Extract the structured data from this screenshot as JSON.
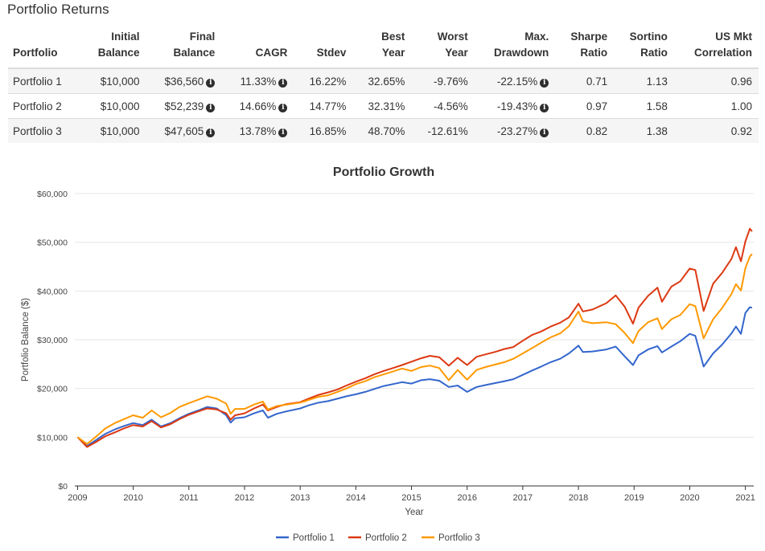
{
  "section_title": "Portfolio Returns",
  "table": {
    "headers": [
      [
        "",
        "Portfolio"
      ],
      [
        "Initial",
        "Balance"
      ],
      [
        "Final",
        "Balance"
      ],
      [
        "",
        "CAGR"
      ],
      [
        "",
        "Stdev"
      ],
      [
        "Best",
        "Year"
      ],
      [
        "Worst",
        "Year"
      ],
      [
        "Max.",
        "Drawdown"
      ],
      [
        "Sharpe",
        "Ratio"
      ],
      [
        "Sortino",
        "Ratio"
      ],
      [
        "US Mkt",
        "Correlation"
      ]
    ],
    "rows": [
      [
        "Portfolio 1",
        "$10,000",
        "$36,560",
        "11.33%",
        "16.22%",
        "32.65%",
        "-9.76%",
        "-22.15%",
        "0.71",
        "1.13",
        "0.96"
      ],
      [
        "Portfolio 2",
        "$10,000",
        "$52,239",
        "14.66%",
        "14.77%",
        "32.31%",
        "-4.56%",
        "-19.43%",
        "0.97",
        "1.58",
        "1.00"
      ],
      [
        "Portfolio 3",
        "$10,000",
        "$47,605",
        "13.78%",
        "16.85%",
        "48.70%",
        "-12.61%",
        "-23.27%",
        "0.82",
        "1.38",
        "0.92"
      ]
    ],
    "info_icon_columns": [
      2,
      3,
      7
    ],
    "info_icon_glyph": "i"
  },
  "chart_data": {
    "type": "line",
    "title": "Portfolio Growth",
    "xlabel": "Year",
    "ylabel": "Portfolio Balance ($)",
    "xlim": [
      2008.95,
      2021.15
    ],
    "ylim": [
      0,
      60000
    ],
    "y_ticks": [
      0,
      10000,
      20000,
      30000,
      40000,
      50000,
      60000
    ],
    "y_tick_labels": [
      "$0",
      "$10,000",
      "$20,000",
      "$30,000",
      "$40,000",
      "$50,000",
      "$60,000"
    ],
    "x_ticks": [
      2009,
      2010,
      2011,
      2012,
      2013,
      2014,
      2015,
      2016,
      2017,
      2018,
      2019,
      2020,
      2021
    ],
    "x_tick_labels": [
      "2009",
      "2010",
      "2011",
      "2012",
      "2013",
      "2014",
      "2015",
      "2016",
      "2017",
      "2018",
      "2019",
      "2020",
      "2021"
    ],
    "grid": true,
    "legend_position": "bottom-center",
    "series": [
      {
        "name": "Portfolio 1",
        "color": "#3366cc",
        "points": [
          [
            2009.0,
            10000
          ],
          [
            2009.17,
            8200
          ],
          [
            2009.33,
            9400
          ],
          [
            2009.5,
            10700
          ],
          [
            2009.67,
            11600
          ],
          [
            2009.83,
            12300
          ],
          [
            2010.0,
            12900
          ],
          [
            2010.17,
            12500
          ],
          [
            2010.33,
            13600
          ],
          [
            2010.5,
            12200
          ],
          [
            2010.67,
            12900
          ],
          [
            2010.83,
            13900
          ],
          [
            2011.0,
            14800
          ],
          [
            2011.17,
            15500
          ],
          [
            2011.33,
            16200
          ],
          [
            2011.5,
            15900
          ],
          [
            2011.67,
            14500
          ],
          [
            2011.75,
            13000
          ],
          [
            2011.83,
            13900
          ],
          [
            2012.0,
            14100
          ],
          [
            2012.17,
            14900
          ],
          [
            2012.33,
            15500
          ],
          [
            2012.42,
            14000
          ],
          [
            2012.58,
            14800
          ],
          [
            2012.75,
            15300
          ],
          [
            2013.0,
            15900
          ],
          [
            2013.17,
            16600
          ],
          [
            2013.33,
            17100
          ],
          [
            2013.5,
            17400
          ],
          [
            2013.67,
            17900
          ],
          [
            2013.83,
            18400
          ],
          [
            2014.0,
            18800
          ],
          [
            2014.17,
            19300
          ],
          [
            2014.33,
            19900
          ],
          [
            2014.5,
            20500
          ],
          [
            2014.67,
            20900
          ],
          [
            2014.83,
            21300
          ],
          [
            2015.0,
            21000
          ],
          [
            2015.17,
            21700
          ],
          [
            2015.33,
            21900
          ],
          [
            2015.5,
            21600
          ],
          [
            2015.67,
            20300
          ],
          [
            2015.83,
            20600
          ],
          [
            2016.0,
            19300
          ],
          [
            2016.17,
            20300
          ],
          [
            2016.33,
            20700
          ],
          [
            2016.5,
            21100
          ],
          [
            2016.67,
            21500
          ],
          [
            2016.83,
            21900
          ],
          [
            2017.0,
            22800
          ],
          [
            2017.17,
            23700
          ],
          [
            2017.33,
            24500
          ],
          [
            2017.5,
            25400
          ],
          [
            2017.67,
            26100
          ],
          [
            2017.83,
            27200
          ],
          [
            2018.0,
            28800
          ],
          [
            2018.08,
            27500
          ],
          [
            2018.25,
            27600
          ],
          [
            2018.5,
            28000
          ],
          [
            2018.67,
            28600
          ],
          [
            2018.83,
            26600
          ],
          [
            2018.98,
            24800
          ],
          [
            2019.08,
            26800
          ],
          [
            2019.25,
            28000
          ],
          [
            2019.42,
            28700
          ],
          [
            2019.5,
            27400
          ],
          [
            2019.67,
            28600
          ],
          [
            2019.83,
            29700
          ],
          [
            2020.0,
            31200
          ],
          [
            2020.1,
            30800
          ],
          [
            2020.25,
            24500
          ],
          [
            2020.42,
            27200
          ],
          [
            2020.58,
            29000
          ],
          [
            2020.75,
            31300
          ],
          [
            2020.83,
            32700
          ],
          [
            2020.92,
            31200
          ],
          [
            2021.0,
            35500
          ],
          [
            2021.08,
            36700
          ],
          [
            2021.12,
            36560
          ]
        ]
      },
      {
        "name": "Portfolio 2",
        "color": "#dc3912",
        "points": [
          [
            2009.0,
            10000
          ],
          [
            2009.17,
            8000
          ],
          [
            2009.33,
            9000
          ],
          [
            2009.5,
            10200
          ],
          [
            2009.67,
            11000
          ],
          [
            2009.83,
            11800
          ],
          [
            2010.0,
            12500
          ],
          [
            2010.17,
            12200
          ],
          [
            2010.33,
            13300
          ],
          [
            2010.5,
            12000
          ],
          [
            2010.67,
            12700
          ],
          [
            2010.83,
            13700
          ],
          [
            2011.0,
            14600
          ],
          [
            2011.17,
            15300
          ],
          [
            2011.33,
            15900
          ],
          [
            2011.5,
            15700
          ],
          [
            2011.67,
            14900
          ],
          [
            2011.75,
            13600
          ],
          [
            2011.83,
            14500
          ],
          [
            2012.0,
            14900
          ],
          [
            2012.17,
            15900
          ],
          [
            2012.33,
            16700
          ],
          [
            2012.42,
            15500
          ],
          [
            2012.58,
            16200
          ],
          [
            2012.75,
            16800
          ],
          [
            2013.0,
            17200
          ],
          [
            2013.17,
            18000
          ],
          [
            2013.33,
            18700
          ],
          [
            2013.5,
            19200
          ],
          [
            2013.67,
            19800
          ],
          [
            2013.83,
            20600
          ],
          [
            2014.0,
            21400
          ],
          [
            2014.17,
            22100
          ],
          [
            2014.33,
            22900
          ],
          [
            2014.5,
            23600
          ],
          [
            2014.67,
            24200
          ],
          [
            2014.83,
            24800
          ],
          [
            2015.0,
            25500
          ],
          [
            2015.17,
            26200
          ],
          [
            2015.33,
            26700
          ],
          [
            2015.5,
            26400
          ],
          [
            2015.67,
            24700
          ],
          [
            2015.83,
            26300
          ],
          [
            2016.0,
            24800
          ],
          [
            2016.17,
            26500
          ],
          [
            2016.33,
            27000
          ],
          [
            2016.5,
            27500
          ],
          [
            2016.67,
            28100
          ],
          [
            2016.83,
            28500
          ],
          [
            2017.0,
            29800
          ],
          [
            2017.17,
            31000
          ],
          [
            2017.33,
            31700
          ],
          [
            2017.5,
            32700
          ],
          [
            2017.67,
            33500
          ],
          [
            2017.83,
            34600
          ],
          [
            2018.0,
            37400
          ],
          [
            2018.08,
            35800
          ],
          [
            2018.25,
            36200
          ],
          [
            2018.5,
            37500
          ],
          [
            2018.67,
            39100
          ],
          [
            2018.83,
            36800
          ],
          [
            2018.98,
            33300
          ],
          [
            2019.08,
            36600
          ],
          [
            2019.25,
            39000
          ],
          [
            2019.42,
            40700
          ],
          [
            2019.5,
            37800
          ],
          [
            2019.67,
            40900
          ],
          [
            2019.83,
            42000
          ],
          [
            2020.0,
            44600
          ],
          [
            2020.1,
            44300
          ],
          [
            2020.25,
            35900
          ],
          [
            2020.42,
            41500
          ],
          [
            2020.58,
            43700
          ],
          [
            2020.75,
            46600
          ],
          [
            2020.83,
            49000
          ],
          [
            2020.92,
            46100
          ],
          [
            2021.0,
            50200
          ],
          [
            2021.08,
            52800
          ],
          [
            2021.12,
            52239
          ]
        ]
      },
      {
        "name": "Portfolio 3",
        "color": "#ff9900",
        "points": [
          [
            2009.0,
            10000
          ],
          [
            2009.17,
            8600
          ],
          [
            2009.33,
            10100
          ],
          [
            2009.5,
            11800
          ],
          [
            2009.67,
            12900
          ],
          [
            2009.83,
            13700
          ],
          [
            2010.0,
            14500
          ],
          [
            2010.17,
            14000
          ],
          [
            2010.33,
            15500
          ],
          [
            2010.5,
            14100
          ],
          [
            2010.67,
            15000
          ],
          [
            2010.83,
            16200
          ],
          [
            2011.0,
            17000
          ],
          [
            2011.17,
            17700
          ],
          [
            2011.33,
            18400
          ],
          [
            2011.5,
            17900
          ],
          [
            2011.67,
            16900
          ],
          [
            2011.75,
            14800
          ],
          [
            2011.83,
            15800
          ],
          [
            2012.0,
            15800
          ],
          [
            2012.17,
            16700
          ],
          [
            2012.33,
            17300
          ],
          [
            2012.42,
            15700
          ],
          [
            2012.58,
            16400
          ],
          [
            2012.75,
            16700
          ],
          [
            2013.0,
            17100
          ],
          [
            2013.17,
            17700
          ],
          [
            2013.33,
            18300
          ],
          [
            2013.5,
            18600
          ],
          [
            2013.67,
            19300
          ],
          [
            2013.83,
            20000
          ],
          [
            2014.0,
            20900
          ],
          [
            2014.17,
            21500
          ],
          [
            2014.33,
            22300
          ],
          [
            2014.5,
            22900
          ],
          [
            2014.67,
            23500
          ],
          [
            2014.83,
            24100
          ],
          [
            2015.0,
            23600
          ],
          [
            2015.17,
            24400
          ],
          [
            2015.33,
            24700
          ],
          [
            2015.5,
            24200
          ],
          [
            2015.67,
            21700
          ],
          [
            2015.83,
            23800
          ],
          [
            2016.0,
            21800
          ],
          [
            2016.17,
            23800
          ],
          [
            2016.33,
            24400
          ],
          [
            2016.5,
            24900
          ],
          [
            2016.67,
            25400
          ],
          [
            2016.83,
            26100
          ],
          [
            2017.0,
            27200
          ],
          [
            2017.17,
            28300
          ],
          [
            2017.33,
            29400
          ],
          [
            2017.5,
            30500
          ],
          [
            2017.67,
            31300
          ],
          [
            2017.83,
            32800
          ],
          [
            2018.0,
            35800
          ],
          [
            2018.08,
            33800
          ],
          [
            2018.25,
            33400
          ],
          [
            2018.5,
            33600
          ],
          [
            2018.67,
            33200
          ],
          [
            2018.83,
            31400
          ],
          [
            2018.98,
            29300
          ],
          [
            2019.08,
            31800
          ],
          [
            2019.25,
            33600
          ],
          [
            2019.42,
            34400
          ],
          [
            2019.5,
            32200
          ],
          [
            2019.67,
            34200
          ],
          [
            2019.83,
            35100
          ],
          [
            2020.0,
            37300
          ],
          [
            2020.1,
            36900
          ],
          [
            2020.25,
            30300
          ],
          [
            2020.42,
            34200
          ],
          [
            2020.58,
            36500
          ],
          [
            2020.75,
            39400
          ],
          [
            2020.83,
            41400
          ],
          [
            2020.92,
            40100
          ],
          [
            2021.0,
            44700
          ],
          [
            2021.08,
            47100
          ],
          [
            2021.12,
            47605
          ]
        ]
      }
    ]
  }
}
